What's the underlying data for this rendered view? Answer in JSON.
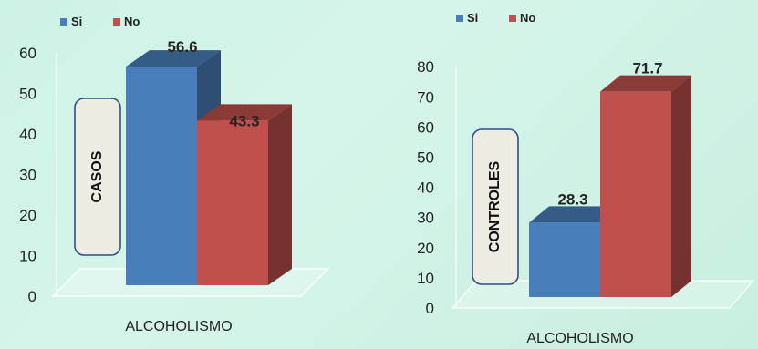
{
  "chart_data": [
    {
      "type": "bar",
      "categories": [
        "ALCOHOLISMO"
      ],
      "series": [
        {
          "name": "Si",
          "values": [
            56.6
          ],
          "color": "#4a7ebb"
        },
        {
          "name": "No",
          "values": [
            43.3
          ],
          "color": "#c0504d"
        }
      ],
      "value_labels": [
        "56.6",
        "43.3"
      ],
      "yticks": [
        "0",
        "10",
        "20",
        "30",
        "40",
        "50",
        "60"
      ],
      "ylim": [
        0,
        60
      ],
      "xlabel": "ALCOHOLISMO",
      "side_label": "CASOS",
      "legend_position": "top-left",
      "grid": false,
      "style": "3d"
    },
    {
      "type": "bar",
      "categories": [
        "ALCOHOLISMO"
      ],
      "series": [
        {
          "name": "Si",
          "values": [
            28.3
          ],
          "color": "#4a7ebb"
        },
        {
          "name": "No",
          "values": [
            71.7
          ],
          "color": "#c0504d"
        }
      ],
      "value_labels": [
        "28.3",
        "71.7"
      ],
      "yticks": [
        "0",
        "10",
        "20",
        "30",
        "40",
        "50",
        "60",
        "70",
        "80"
      ],
      "ylim": [
        0,
        80
      ],
      "xlabel": "ALCOHOLISMO",
      "side_label": "CONTROLES",
      "legend_position": "top-left",
      "grid": false,
      "style": "3d"
    }
  ]
}
